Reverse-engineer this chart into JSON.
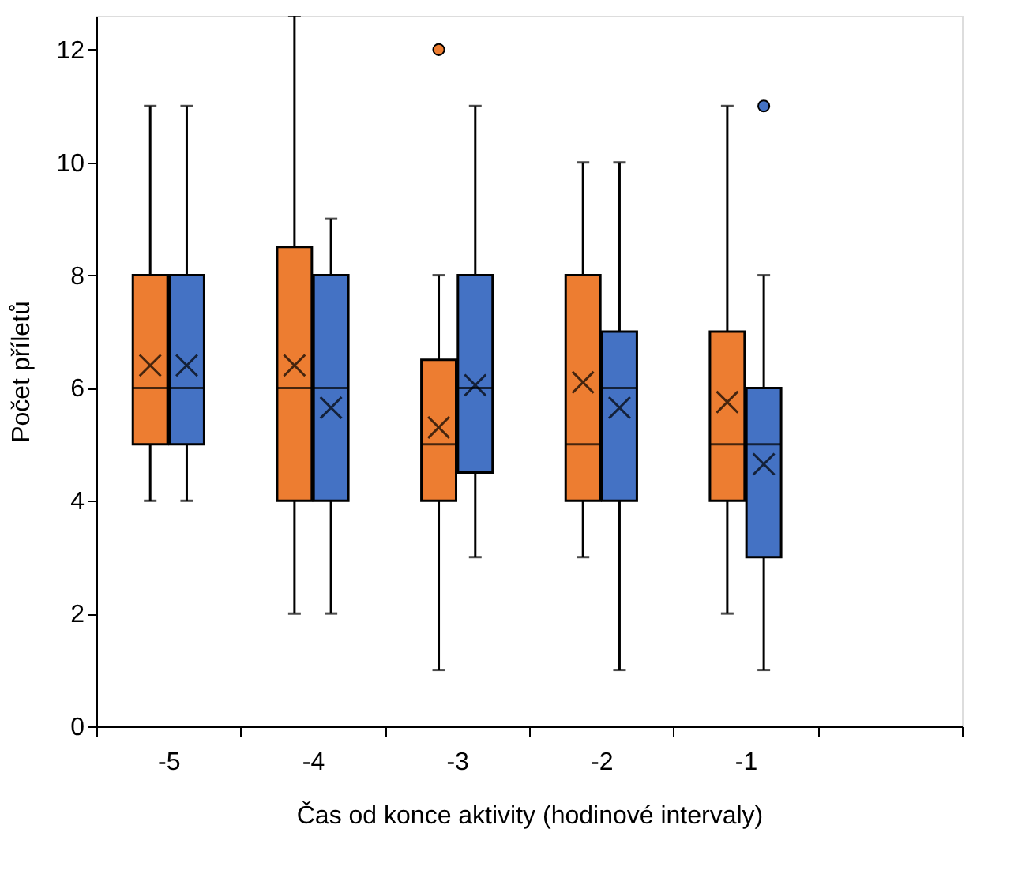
{
  "chart_data": {
    "type": "box",
    "xlabel": "Čas od konce aktivity (hodinové intervaly)",
    "ylabel": "Počet příletů",
    "categories": [
      "-5",
      "-4",
      "-3",
      "-2",
      "-1",
      null
    ],
    "ylim": [
      0,
      12.6
    ],
    "yticks": [
      0,
      2,
      4,
      6,
      8,
      10,
      12
    ],
    "grid": false,
    "series": [
      {
        "color": "#ed7d31",
        "boxes": [
          {
            "low": 4,
            "q1": 5,
            "median": 6,
            "q3": 8,
            "high": 11,
            "mean": 6.4
          },
          {
            "low": 2,
            "q1": 4,
            "median": 6,
            "q3": 8.5,
            "high": 12.6,
            "mean": 6.4
          },
          {
            "low": 1,
            "q1": 4,
            "median": 5,
            "q3": 6.5,
            "high": 8,
            "mean": 5.3,
            "outliers": [
              12
            ]
          },
          {
            "low": 3,
            "q1": 4,
            "median": 5,
            "q3": 8,
            "high": 10,
            "mean": 6.1
          },
          {
            "low": 2,
            "q1": 4,
            "median": 5,
            "q3": 7,
            "high": 11,
            "mean": 5.75
          },
          null
        ]
      },
      {
        "color": "#4472c4",
        "boxes": [
          {
            "low": 4,
            "q1": 5,
            "median": 6,
            "q3": 8,
            "high": 11,
            "mean": 6.4
          },
          {
            "low": 2,
            "q1": 4,
            "median": 6,
            "q3": 8,
            "high": 9,
            "mean": 5.65
          },
          {
            "low": 3,
            "q1": 4.5,
            "median": 6,
            "q3": 8,
            "high": 11,
            "mean": 6.05
          },
          {
            "low": 1,
            "q1": 4,
            "median": 6,
            "q3": 7,
            "high": 10,
            "mean": 5.65
          },
          {
            "low": 1,
            "q1": 3,
            "median": 5,
            "q3": 6,
            "high": 8,
            "mean": 4.65,
            "outliers": [
              11
            ]
          },
          null
        ]
      }
    ]
  }
}
